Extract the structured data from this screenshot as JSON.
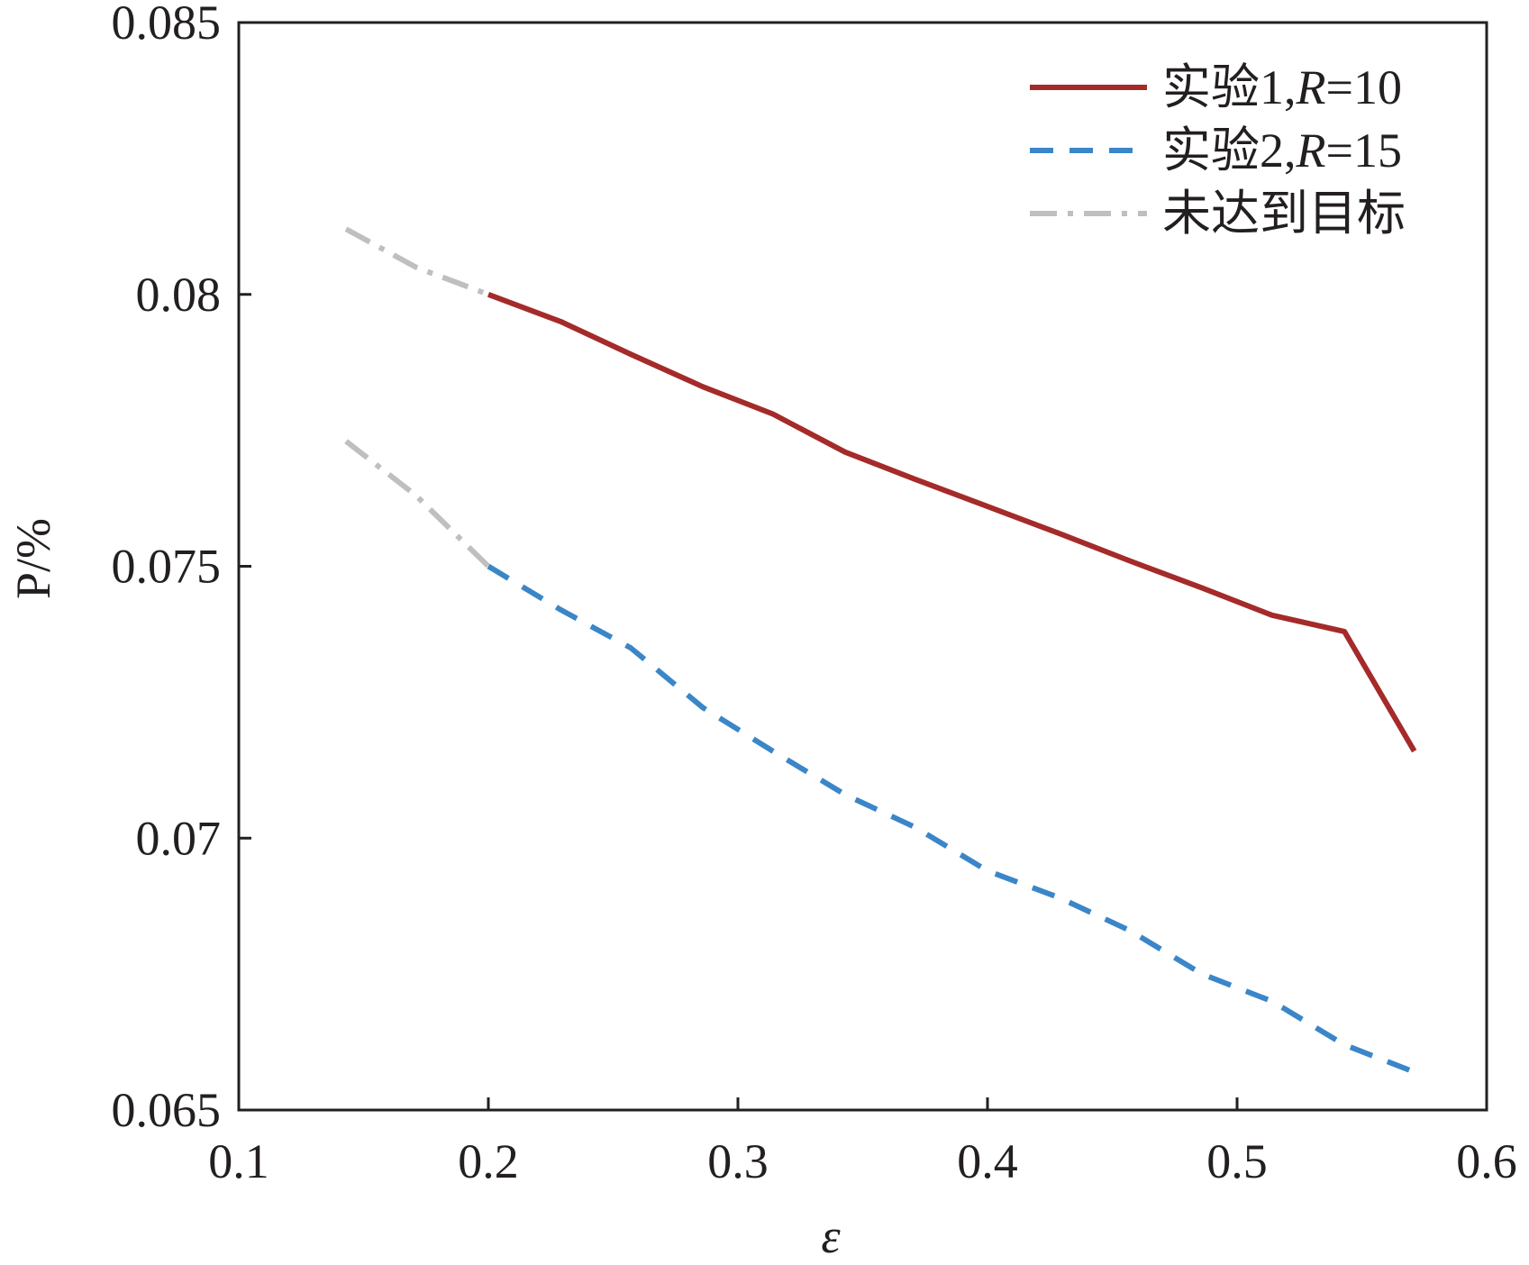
{
  "chart_data": {
    "type": "line",
    "title": "",
    "xlabel": "ε",
    "ylabel": "P/%",
    "xlim": [
      0.1,
      0.6
    ],
    "ylim": [
      0.065,
      0.085
    ],
    "xticks": [
      0.1,
      0.2,
      0.3,
      0.4,
      0.5,
      0.6
    ],
    "yticks": [
      0.065,
      0.07,
      0.075,
      0.08,
      0.085
    ],
    "xtick_labels": [
      "0.1",
      "0.2",
      "0.3",
      "0.4",
      "0.5",
      "0.6"
    ],
    "ytick_labels": [
      "0.065",
      "0.07",
      "0.075",
      "0.08",
      "0.085"
    ],
    "grid": false,
    "legend_position": "top-right",
    "series": [
      {
        "name": "实验1,R=10",
        "label_main": "实验1,",
        "label_var": "R",
        "label_rest": "=10",
        "color": "#a52a2a",
        "style": "solid",
        "x": [
          0.2,
          0.229,
          0.257,
          0.286,
          0.314,
          0.343,
          0.371,
          0.4,
          0.429,
          0.457,
          0.486,
          0.514,
          0.543,
          0.571
        ],
        "y": [
          0.08,
          0.0795,
          0.0789,
          0.0783,
          0.0778,
          0.0771,
          0.0766,
          0.0761,
          0.0756,
          0.0751,
          0.0746,
          0.0741,
          0.0738,
          0.0716
        ]
      },
      {
        "name": "实验2,R=15",
        "label_main": "实验2,",
        "label_var": "R",
        "label_rest": "=15",
        "color": "#3a86c8",
        "style": "dashed",
        "x": [
          0.2,
          0.229,
          0.257,
          0.286,
          0.314,
          0.343,
          0.371,
          0.4,
          0.429,
          0.457,
          0.486,
          0.514,
          0.543,
          0.571
        ],
        "y": [
          0.075,
          0.0742,
          0.0735,
          0.0724,
          0.0716,
          0.0708,
          0.0702,
          0.0694,
          0.0689,
          0.0683,
          0.0675,
          0.067,
          0.0662,
          0.0657
        ]
      },
      {
        "name": "未达到目标",
        "label_main": "未达到目标",
        "label_var": "",
        "label_rest": "",
        "color": "#bfbfbf",
        "style": "dashdot",
        "segments": [
          {
            "x": [
              0.143,
              0.171,
              0.2
            ],
            "y": [
              0.0812,
              0.0805,
              0.08
            ]
          },
          {
            "x": [
              0.143,
              0.171,
              0.2
            ],
            "y": [
              0.0773,
              0.0763,
              0.075
            ]
          }
        ]
      }
    ]
  }
}
